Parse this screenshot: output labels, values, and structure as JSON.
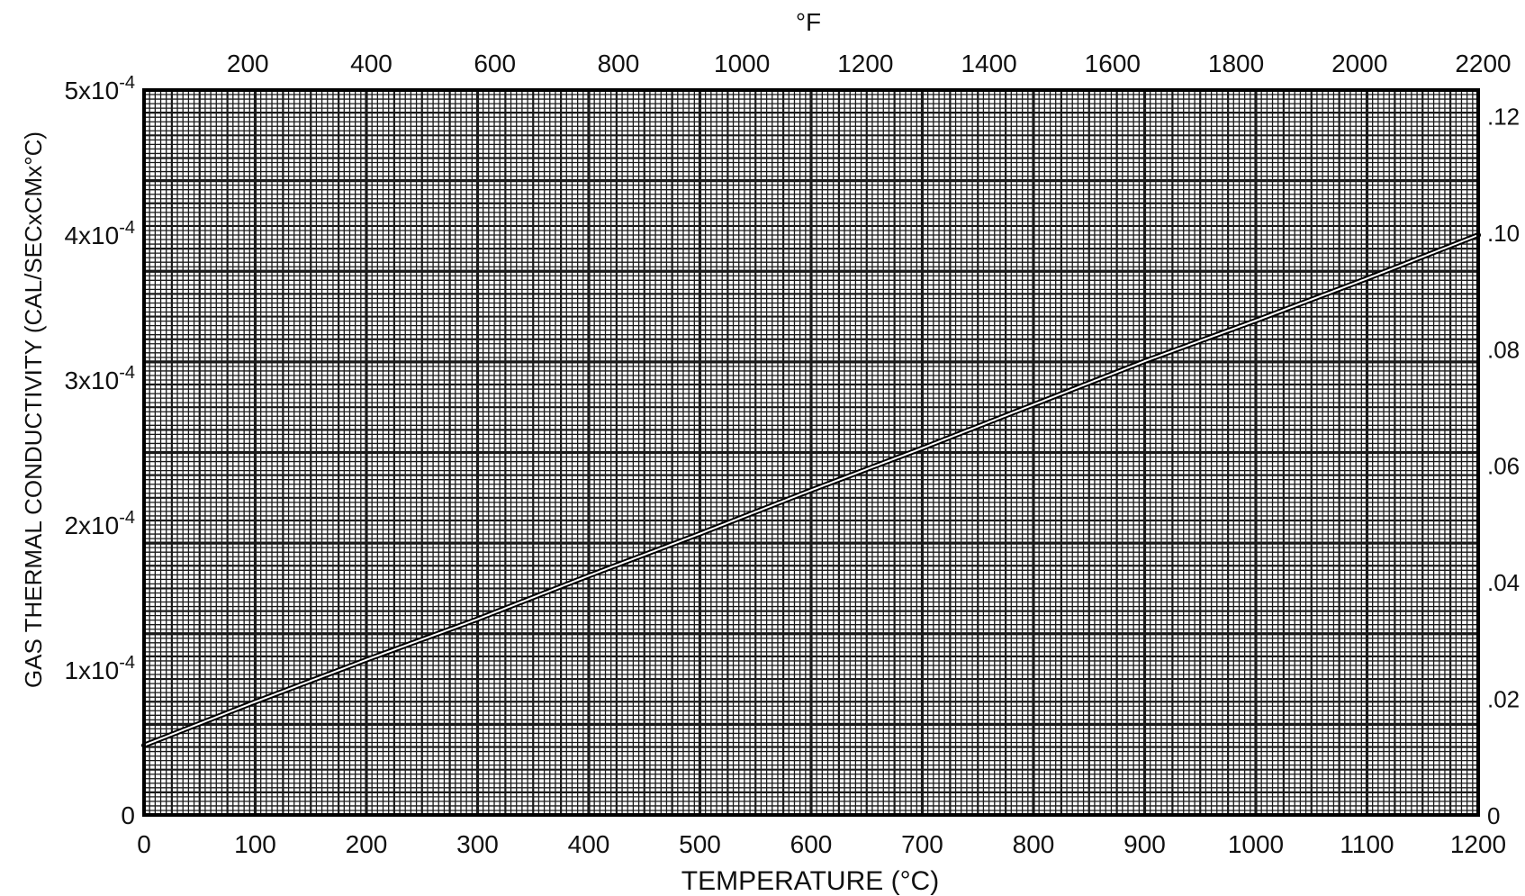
{
  "chart_data": {
    "type": "line",
    "title": "",
    "xlabel": "TEMPERATURE (°C)",
    "ylabel": "GAS THERMAL CONDUCTIVITY (CAL/SECxCMx°C)",
    "top_axis_label": "°F",
    "xlim": [
      0,
      1200
    ],
    "ylim": [
      0,
      0.0005
    ],
    "x_ticks": [
      "0",
      "100",
      "200",
      "300",
      "400",
      "500",
      "600",
      "700",
      "800",
      "900",
      "1000",
      "1100",
      "1200"
    ],
    "x_tick_values": [
      0,
      100,
      200,
      300,
      400,
      500,
      600,
      700,
      800,
      900,
      1000,
      1100,
      1200
    ],
    "top_ticks": [
      "200",
      "400",
      "600",
      "800",
      "1000",
      "1200",
      "1400",
      "1600",
      "1800",
      "2000",
      "2200"
    ],
    "top_tick_values_F": [
      200,
      400,
      600,
      800,
      1000,
      1200,
      1400,
      1600,
      1800,
      2000,
      2200
    ],
    "y_ticks_left": [
      {
        "value": 0,
        "base": "0",
        "exp": ""
      },
      {
        "value": 0.0001,
        "base": "1x10",
        "exp": "-4"
      },
      {
        "value": 0.0002,
        "base": "2x10",
        "exp": "-4"
      },
      {
        "value": 0.0003,
        "base": "3x10",
        "exp": "-4"
      },
      {
        "value": 0.0004,
        "base": "4x10",
        "exp": "-4"
      },
      {
        "value": 0.0005,
        "base": "5x10",
        "exp": "-4"
      }
    ],
    "y_ticks_right": [
      {
        "value": 0,
        "label": "0"
      },
      {
        "value": 0.02,
        "label": ".02"
      },
      {
        "value": 0.04,
        "label": ".04"
      },
      {
        "value": 0.06,
        "label": ".06"
      },
      {
        "value": 0.08,
        "label": ".08"
      },
      {
        "value": 0.1,
        "label": ".10"
      },
      {
        "value": 0.12,
        "label": ".12"
      }
    ],
    "right_ylim": [
      0,
      0.1244
    ],
    "grid": true,
    "series": [
      {
        "x": [
          0,
          100,
          200,
          300,
          400,
          500,
          600,
          700,
          800,
          900,
          1000,
          1100,
          1200
        ],
        "y": [
          4.8e-05,
          7.8e-05,
          0.000107,
          0.000135,
          0.000165,
          0.000194,
          0.000224,
          0.000253,
          0.000283,
          0.000313,
          0.000341,
          0.00037,
          0.0004
        ]
      }
    ],
    "colors": {
      "grid_bg": "#ffffff",
      "grid_line": "#1a1a1a",
      "axis": "#000000",
      "curve": "#ffffff"
    }
  }
}
